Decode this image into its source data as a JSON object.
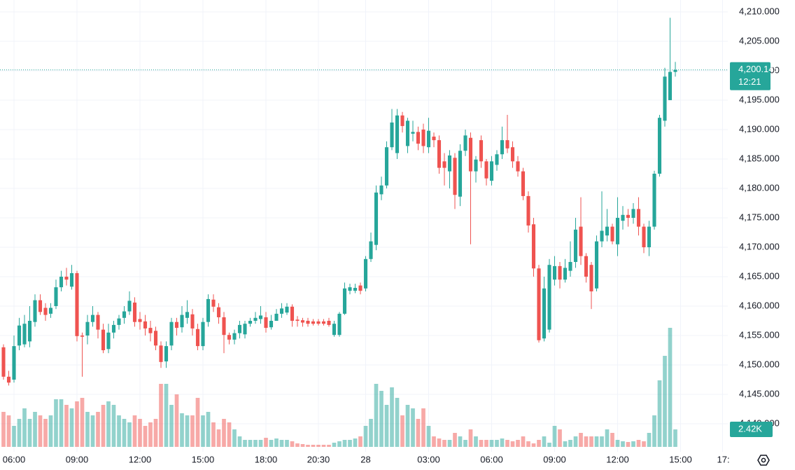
{
  "chart_data": {
    "type": "candlestick",
    "colors": {
      "up": "#26a69a",
      "down": "#ef5350"
    },
    "grid": true,
    "ylim": [
      4135.24,
      4212.02
    ],
    "yticks": [
      {
        "value": 4140,
        "label": "4,140.000"
      },
      {
        "value": 4145,
        "label": "4,145.000"
      },
      {
        "value": 4150,
        "label": "4,150.000"
      },
      {
        "value": 4155,
        "label": "4,155.000"
      },
      {
        "value": 4160,
        "label": "4,160.000"
      },
      {
        "value": 4165,
        "label": "4,165.000"
      },
      {
        "value": 4170,
        "label": "4,170.000"
      },
      {
        "value": 4175,
        "label": "4,175.000"
      },
      {
        "value": 4180,
        "label": "4,180.000"
      },
      {
        "value": 4185,
        "label": "4,185.000"
      },
      {
        "value": 4190,
        "label": "4,190.000"
      },
      {
        "value": 4195,
        "label": "4,195.000"
      },
      {
        "value": 4200,
        "label": "4,200.000"
      },
      {
        "value": 4205,
        "label": "4,205.000"
      },
      {
        "value": 4210,
        "label": "4,210.000"
      }
    ],
    "xlim": [
      -0.667,
      138
    ],
    "xticks": [
      {
        "value": 2,
        "label": "06:00"
      },
      {
        "value": 14,
        "label": "09:00"
      },
      {
        "value": 26,
        "label": "12:00"
      },
      {
        "value": 38,
        "label": "15:00"
      },
      {
        "value": 50,
        "label": "18:00"
      },
      {
        "value": 60,
        "label": "20:30"
      },
      {
        "value": 69,
        "label": "28"
      },
      {
        "value": 81,
        "label": "03:00"
      },
      {
        "value": 93,
        "label": "06:00"
      },
      {
        "value": 105,
        "label": "09:00"
      },
      {
        "value": 117,
        "label": "12:00"
      },
      {
        "value": 129,
        "label": "15:00"
      },
      {
        "value": 137,
        "label": "17:"
      }
    ],
    "open": [
      4153,
      4148,
      4147.5,
      4153.3,
      4153.5,
      4154,
      4157.3,
      4161,
      4159.7,
      4158.7,
      4160,
      4163.2,
      4165,
      4163.3,
      4165.6,
      4155,
      4155,
      4157.3,
      4158.5,
      4156,
      4152.7,
      4155.5,
      4156.8,
      4158,
      4159.1,
      4160.6,
      4157.8,
      4157.4,
      4156.3,
      4155.8,
      4153.3,
      4150.6,
      4153.3,
      4157.3,
      4156.4,
      4158,
      4158.6,
      4156.1,
      4153.2,
      4157.3,
      4161.1,
      4159.8,
      4158.1,
      4155.1,
      4154.3,
      4155.4,
      4155.2,
      4157,
      4157.5,
      4157.8,
      4158.1,
      4156.4,
      4157.5,
      4158.7,
      4158.9,
      4159.9,
      4157.7,
      4157.6,
      4157.5,
      4157.4,
      4157.4,
      4157.4,
      4157.5,
      4155.1,
      4155.1,
      4158.7,
      4162.6,
      4162.6,
      4163.5,
      4163,
      4168,
      4170.4,
      4179,
      4180.5,
      4187,
      4186,
      4192.4,
      4187.2,
      4189.3,
      4189.6,
      4190,
      4187,
      4188.8,
      4188.2,
      4184.6,
      4182.9,
      4185.2,
      4178.6,
      4186.4,
      4188.6,
      4182.9,
      4188.2,
      4184.6,
      4181.3,
      4184,
      4185.8,
      4188.2,
      4187,
      4184.6,
      4182.9,
      4178.7,
      4173.9,
      4166.4,
      4154.5,
      4156,
      4164.5,
      4166.8,
      4164.5,
      4166,
      4167.5,
      4173.5,
      4168.5,
      4167,
      4163,
      4171,
      4172,
      4173.5,
      4170.5,
      4174.5,
      4175.5,
      4175,
      4176.5,
      4173.5,
      4170,
      4173.5,
      4182.5,
      4191.5,
      4195,
      4199.8
    ],
    "high": [
      4153.5,
      4149,
      4155,
      4158,
      4158.5,
      4160,
      4162,
      4162,
      4160.5,
      4160.5,
      4164.5,
      4166,
      4166.5,
      4167,
      4166,
      4155.5,
      4158.5,
      4160,
      4159,
      4157,
      4157,
      4157.5,
      4158.5,
      4160,
      4162.5,
      4161.5,
      4159,
      4158.5,
      4157.5,
      4156.5,
      4154,
      4154,
      4158,
      4158,
      4160,
      4161,
      4159.5,
      4157,
      4158,
      4162,
      4162,
      4160.5,
      4159,
      4155.5,
      4156,
      4157.5,
      4157.5,
      4158,
      4159,
      4160,
      4159,
      4158.5,
      4159.5,
      4160.5,
      4160.5,
      4160.3,
      4158.3,
      4158,
      4158,
      4157.8,
      4157.8,
      4157.8,
      4158,
      4157.5,
      4159,
      4164,
      4163.8,
      4163.8,
      4164,
      4168.5,
      4172.5,
      4180.5,
      4182,
      4188,
      4193.5,
      4193.5,
      4193,
      4192,
      4191.5,
      4190.5,
      4191,
      4192,
      4189.5,
      4189,
      4186,
      4186.5,
      4186,
      4187.5,
      4190,
      4189.5,
      4185.5,
      4189,
      4185,
      4185.5,
      4186.5,
      4190.5,
      4192.5,
      4188,
      4185.5,
      4183.5,
      4179.5,
      4175,
      4167,
      4165,
      4168,
      4168.5,
      4167.5,
      4168,
      4171,
      4175,
      4178.5,
      4169,
      4167.5,
      4172,
      4179.5,
      4176.5,
      4174,
      4178.5,
      4177,
      4176.5,
      4177.5,
      4178.5,
      4174,
      4174.5,
      4183,
      4192.5,
      4200.5,
      4209,
      4201.5
    ],
    "low": [
      4147.5,
      4146.5,
      4147,
      4152.5,
      4153,
      4153,
      4156.5,
      4158.5,
      4157.5,
      4158,
      4159.5,
      4162.5,
      4163.5,
      4162.8,
      4154,
      4148,
      4153.5,
      4156.5,
      4154.5,
      4152,
      4152,
      4154.5,
      4156,
      4157,
      4158.5,
      4156.5,
      4156,
      4155,
      4154,
      4152.5,
      4149.5,
      4149.5,
      4152.5,
      4155,
      4155.5,
      4157,
      4155,
      4152.5,
      4152.5,
      4156.5,
      4159,
      4157,
      4152,
      4153.5,
      4153.5,
      4154.5,
      4154.5,
      4156.5,
      4157,
      4157,
      4155.5,
      4156,
      4157.5,
      4158,
      4158.5,
      4156.5,
      4156.5,
      4156.5,
      4156.5,
      4156.7,
      4156.7,
      4156.7,
      4156.5,
      4154.8,
      4154.8,
      4158.5,
      4162,
      4162.2,
      4162,
      4162.5,
      4167.5,
      4169.5,
      4178,
      4180,
      4186.5,
      4185,
      4189.5,
      4186,
      4188,
      4186.5,
      4186,
      4186,
      4187,
      4182.5,
      4180.5,
      4180,
      4176.5,
      4177,
      4185.5,
      4170.5,
      4181,
      4183.5,
      4180.5,
      4180.5,
      4183,
      4185,
      4186,
      4183.5,
      4182,
      4178,
      4172.5,
      4165,
      4153.8,
      4154,
      4155.5,
      4163.5,
      4163,
      4164,
      4165,
      4166.5,
      4167,
      4164,
      4159.5,
      4162.5,
      4170,
      4171,
      4170.5,
      4168.5,
      4173,
      4173.5,
      4174,
      4172,
      4169,
      4168.5,
      4173,
      4182,
      4190.5,
      4195,
      4199
    ],
    "close": [
      4148,
      4147,
      4153.2,
      4156.7,
      4157,
      4157.5,
      4161,
      4159,
      4158.5,
      4159.7,
      4163.2,
      4165,
      4164.5,
      4165.6,
      4154.9,
      4154.8,
      4157.3,
      4158.5,
      4156,
      4152.5,
      4155.5,
      4156.8,
      4157.9,
      4159.1,
      4160.9,
      4157.3,
      4157.3,
      4156.2,
      4155.4,
      4153.3,
      4150.5,
      4153.2,
      4157.3,
      4156.3,
      4158.5,
      4159,
      4156.2,
      4153.2,
      4157.3,
      4161.2,
      4159.9,
      4158.1,
      4155.1,
      4154.3,
      4155.4,
      4156.8,
      4157,
      4157.5,
      4158,
      4158.4,
      4156.3,
      4157.5,
      4158.7,
      4159.6,
      4159.9,
      4157.5,
      4157.5,
      4157.2,
      4157,
      4157,
      4157,
      4157,
      4156.8,
      4157,
      4158.7,
      4163,
      4163.2,
      4163.1,
      4162.6,
      4168,
      4171,
      4179.3,
      4180.5,
      4187,
      4191.2,
      4192.4,
      4190.6,
      4191.5,
      4189.6,
      4187.6,
      4187.2,
      4189.8,
      4188.2,
      4183.5,
      4183.5,
      4185.6,
      4178.9,
      4186.4,
      4189,
      4182.9,
      4184.9,
      4184.6,
      4181.7,
      4184.6,
      4185.8,
      4188.2,
      4186.8,
      4184.6,
      4182.9,
      4178.7,
      4173.7,
      4166.4,
      4154.2,
      4163,
      4167,
      4166.8,
      4164.5,
      4166.5,
      4167.5,
      4173,
      4168.5,
      4165,
      4162.5,
      4171,
      4172.8,
      4173.5,
      4171,
      4175,
      4175.5,
      4175,
      4176.5,
      4173.5,
      4170,
      4173.5,
      4182.5,
      4192,
      4199,
      4199.8,
      4200.145
    ],
    "close_label": "4,200.145",
    "countdown": "12:21",
    "volume": [
      4850,
      4365,
      2910,
      3880,
      5335,
      3880,
      4850,
      4365,
      3880,
      4365,
      6596,
      6596,
      5820,
      5335,
      6305,
      6790,
      4850,
      4365,
      4850,
      5820,
      6305,
      5820,
      4365,
      3880,
      3395,
      4365,
      3880,
      2910,
      3395,
      3880,
      8730,
      8730,
      5820,
      7275,
      4656,
      4365,
      4365,
      6790,
      4365,
      4850,
      3395,
      2425,
      3880,
      3395,
      2425,
      1455,
      970,
      970,
      970,
      970,
      1261,
      970,
      1164,
      970,
      970,
      776,
      485,
      388,
      291,
      291,
      291,
      291,
      291,
      582,
      776,
      970,
      970,
      1164,
      1455,
      2910,
      3880,
      8730,
      7760,
      5820,
      8245,
      6790,
      4365,
      5820,
      5335,
      3880,
      5335,
      2910,
      1455,
      1164,
      970,
      970,
      1940,
      1455,
      970,
      2425,
      1455,
      970,
      970,
      970,
      970,
      1164,
      970,
      776,
      970,
      1455,
      776,
      485,
      970,
      1455,
      582,
      2910,
      2425,
      776,
      970,
      1455,
      1940,
      1455,
      1455,
      1455,
      1455,
      2425,
      1940,
      970,
      776,
      679,
      776,
      970,
      776,
      1940,
      4365,
      9215,
      12610,
      16490,
      2420
    ],
    "volume_label": "2.42K"
  }
}
